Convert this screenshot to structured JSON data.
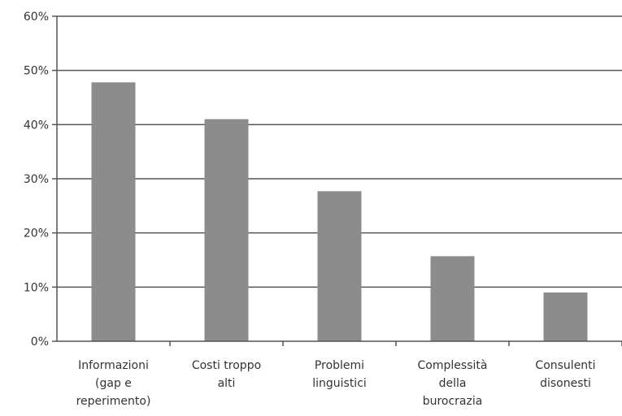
{
  "chart_data": {
    "type": "bar",
    "categories": [
      [
        "Informazioni",
        "(gap e",
        "reperimento)"
      ],
      [
        "Costi troppo",
        "alti"
      ],
      [
        "Problemi",
        "linguistici"
      ],
      [
        "Complessità",
        "della",
        "burocrazia"
      ],
      [
        "Consulenti",
        "disonesti"
      ]
    ],
    "values": [
      0.478,
      0.41,
      0.277,
      0.157,
      0.09
    ],
    "ylim": [
      0,
      0.6
    ],
    "yticks": [
      "0%",
      "10%",
      "20%",
      "30%",
      "40%",
      "50%",
      "60%"
    ],
    "ytick_values": [
      0,
      0.1,
      0.2,
      0.3,
      0.4,
      0.5,
      0.6
    ],
    "grid": true,
    "bar_color": "#8c8c8c",
    "grid_color": "#555555",
    "title": "",
    "xlabel": "",
    "ylabel": ""
  }
}
